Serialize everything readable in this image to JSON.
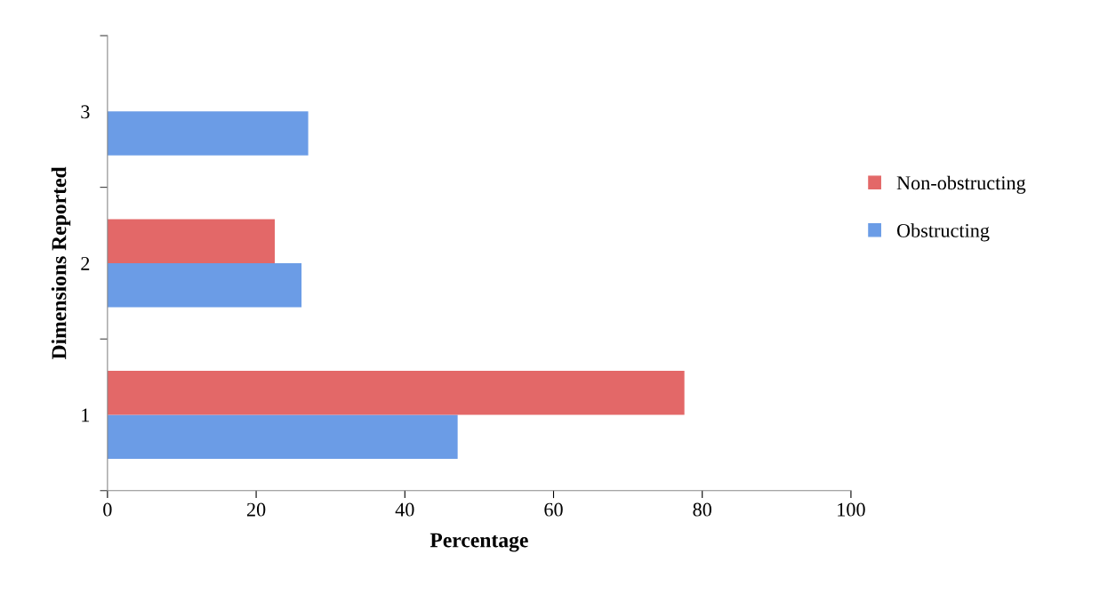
{
  "chart_data": {
    "type": "bar",
    "orientation": "horizontal",
    "xlabel": "Percentage",
    "ylabel": "Dimensions Reported",
    "categories": [
      "3",
      "2",
      "1"
    ],
    "series": [
      {
        "name": "Obstructing",
        "color": "#6b9ce6",
        "values": [
          27.0,
          26.1,
          47.1
        ]
      },
      {
        "name": "Non-obstructing",
        "color": "#e36868",
        "values": [
          null,
          22.5,
          77.6
        ]
      }
    ],
    "xlim": [
      0,
      100
    ],
    "xticks": [
      0,
      20,
      40,
      60,
      80,
      100
    ],
    "grid": false,
    "legend": "right"
  }
}
